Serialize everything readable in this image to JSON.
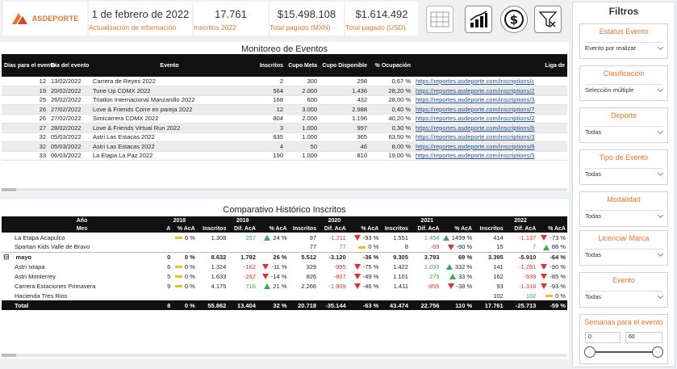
{
  "header": {
    "logo_text": "ASDEPORTE",
    "kpis": [
      {
        "value": "1 de febrero de 2022",
        "label": "Actualización de información"
      },
      {
        "value": "17.761",
        "label": "Inscritos 2022"
      },
      {
        "value": "$15.498.108",
        "label": "Total pagado (MXN)"
      },
      {
        "value": "$1.614.492",
        "label": "Total pagado (USD)"
      }
    ],
    "icons": [
      "table-icon",
      "bar-chart-icon",
      "dollar-icon",
      "clear-filter-icon"
    ]
  },
  "events": {
    "title": "Monitoreo de Eventos",
    "columns": [
      "Días para el evento",
      "Día del evento",
      "Evento",
      "Inscritos",
      "Cupo Meta",
      "Cupo Disponible",
      "% Ocupación",
      "Liga de"
    ],
    "rows": [
      [
        "12",
        "13/02/2022",
        "Carrera de Reyes 2022",
        "2",
        "300",
        "298",
        "0,67 %",
        "https://reportes.asdeporte.com/inscriptions/c"
      ],
      [
        "19",
        "20/02/2022",
        "Tune Up CDMX 2022",
        "564",
        "2.000",
        "1.436",
        "28,20 %",
        "https://reportes.asdeporte.com/inscriptions/2"
      ],
      [
        "25",
        "26/02/2022",
        "Triatlon Internacional Manzanillo 2022",
        "168",
        "600",
        "432",
        "28,00 %",
        "https://reportes.asdeporte.com/inscriptions/3"
      ],
      [
        "26",
        "27/02/2022",
        "Love & Friends Corre en pareja 2022",
        "12",
        "3.000",
        "2.988",
        "0,40 %",
        "https://reportes.asdeporte.com/inscriptions/7"
      ],
      [
        "26",
        "27/02/2022",
        "Simicarrera CDMX 2022",
        "804",
        "2.000",
        "1.196",
        "40,20 %",
        "https://reportes.asdeporte.com/inscriptions/2"
      ],
      [
        "27",
        "28/02/2022",
        "Love & Friends Virtual Run 2022",
        "3",
        "1.000",
        "997",
        "0,30 %",
        "https://reportes.asdeporte.com/inscriptions/b"
      ],
      [
        "32",
        "05/03/2022",
        "Astri Las Estacas 2022",
        "635",
        "1.000",
        "365",
        "63,50 %",
        "https://reportes.asdeporte.com/inscriptions/3"
      ],
      [
        "32",
        "05/03/2022",
        "Astri Las Estacas 2022",
        "4",
        "50",
        "46",
        "8,00 %",
        "https://reportes.asdeporte.com/inscriptions/6"
      ],
      [
        "33",
        "06/03/2022",
        "La Etapa La Paz 2022",
        "190",
        "1.000",
        "810",
        "19,00 %",
        "https://reportes.asdeporte.com/inscriptions/5"
      ]
    ]
  },
  "history": {
    "title": "Comparativo Histórico Inscritos",
    "header_year_label": "Año",
    "header_mes_label": "Mes",
    "years": [
      "2018",
      "2019",
      "2020",
      "2021",
      "2022"
    ],
    "subcols": [
      "A",
      "% AcA",
      "Inscritos",
      "Dif. AcA",
      "% AcA",
      "Inscritos",
      "Dif. AcA",
      "% AcA",
      "Inscritos",
      "Dif. AcA",
      "% AcA",
      "Inscritos",
      "Dif. AcA",
      "% AcA"
    ],
    "rows": [
      {
        "type": "item",
        "name": "La Etapa Acapulco",
        "cells": [
          "",
          "0 %",
          "1.308",
          "257",
          "24 %",
          "97",
          "-1.211",
          "-93 %",
          "1.551",
          "1.454",
          "1499 %",
          "414",
          "-1.137",
          "-73 %"
        ],
        "flags": [
          "",
          "eq",
          "",
          "g",
          "up",
          "",
          "rd",
          "dn",
          "",
          "g",
          "up",
          "",
          "rd",
          "dn"
        ]
      },
      {
        "type": "item",
        "name": "Spartan Kids Valle de Bravo",
        "cells": [
          "",
          "",
          "",
          "",
          "",
          "77",
          "77",
          "0 %",
          "8",
          "-69",
          "-90 %",
          "15",
          "7",
          "88 %"
        ],
        "flags": [
          "",
          "",
          "",
          "",
          "",
          "",
          "g",
          "eq",
          "",
          "rd",
          "dn",
          "",
          "g",
          "up"
        ]
      },
      {
        "type": "grp",
        "name": "mayo",
        "cells": [
          "0",
          "0 %",
          "8.632",
          "1.792",
          "26 %",
          "5.512",
          "-3.120",
          "-36 %",
          "9.305",
          "3.793",
          "69 %",
          "3.395",
          "-5.910",
          "-64 %"
        ],
        "flags": [
          "",
          "",
          "",
          "",
          "",
          "",
          "",
          "",
          "",
          "",
          "",
          "",
          "",
          ""
        ]
      },
      {
        "type": "item",
        "name": "Astri Ixtapa",
        "cells": [
          "6",
          "0 %",
          "1.324",
          "-162",
          "-11 %",
          "329",
          "-995",
          "-75 %",
          "1.422",
          "1.093",
          "332 %",
          "141",
          "-1.281",
          "-90 %"
        ],
        "flags": [
          "",
          "eq",
          "",
          "rd",
          "dn",
          "",
          "rd",
          "dn",
          "",
          "g",
          "up",
          "",
          "rd",
          "dn"
        ]
      },
      {
        "type": "item",
        "name": "Astri Monterrey",
        "cells": [
          "5",
          "0 %",
          "1.633",
          "-262",
          "-14 %",
          "826",
          "-807",
          "-49 %",
          "1.101",
          "275",
          "33 %",
          "162",
          "-939",
          "-85 %"
        ],
        "flags": [
          "",
          "eq",
          "",
          "rd",
          "dn",
          "",
          "rd",
          "dn",
          "",
          "g",
          "up",
          "",
          "rd",
          "dn"
        ]
      },
      {
        "type": "item",
        "name": "Carrera Estaciones Primavera",
        "cells": [
          "9",
          "0 %",
          "4.175",
          "716",
          "21 %",
          "2.266",
          "-1.909",
          "-46 %",
          "1.411",
          "-855",
          "-38 %",
          "93",
          "-1.318",
          "-93 %"
        ],
        "flags": [
          "",
          "eq",
          "",
          "g",
          "up",
          "",
          "rd",
          "dn",
          "",
          "rd",
          "dn",
          "",
          "rd",
          "dn"
        ]
      },
      {
        "type": "item",
        "name": "Hacienda Tres Rios",
        "cells": [
          "",
          "",
          "",
          "",
          "",
          "",
          "",
          "",
          "",
          "",
          "",
          "102",
          "102",
          "0 %"
        ],
        "flags": [
          "",
          "",
          "",
          "",
          "",
          "",
          "",
          "",
          "",
          "",
          "",
          "",
          "g",
          "eq"
        ]
      }
    ],
    "total": {
      "name": "Total",
      "cells": [
        "8",
        "0 %",
        "55.862",
        "13.404",
        "32 %",
        "20.718",
        "-35.144",
        "-63 %",
        "43.474",
        "22.756",
        "110 %",
        "17.761",
        "-25.713",
        "-59 %"
      ]
    }
  },
  "filters": {
    "title": "Filtros",
    "items": [
      {
        "label": "Estatus Evento",
        "value": "Evento por realizar"
      },
      {
        "label": "Clasificación",
        "value": "Selección múltiple"
      },
      {
        "label": "Deporte",
        "value": "Todas"
      },
      {
        "label": "Tipo de Evento",
        "value": "Todas"
      },
      {
        "label": "Modalidad",
        "value": "Todas"
      },
      {
        "label": "Licencia/ Marca",
        "value": "Todas"
      },
      {
        "label": "Evento",
        "value": "Todas"
      }
    ],
    "weeks": {
      "label": "Semanas para el evento",
      "min": "0",
      "max": "60"
    }
  },
  "colors": {
    "accent": "#e8742c",
    "positive": "#3aa858",
    "negative": "#e03030",
    "neutral": "#f0c020",
    "header_bg": "#111111"
  }
}
